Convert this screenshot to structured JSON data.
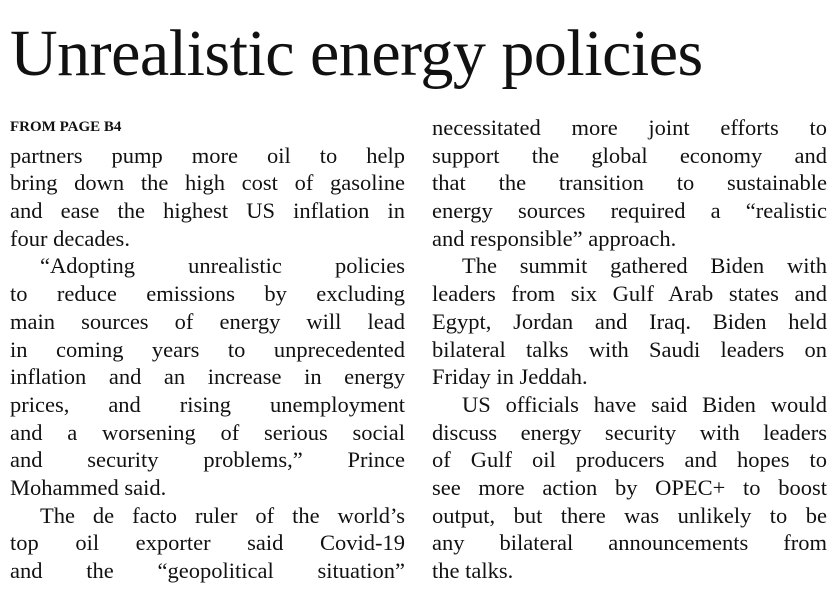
{
  "headline": "Unrealistic energy policies",
  "kicker": "FROM PAGE B4",
  "columns": [
    {
      "paragraphs": [
        {
          "lines": [
            "partners pump more oil to help",
            "bring down the high cost of gasoline",
            "and ease the highest US inflation in",
            "four decades."
          ]
        },
        {
          "lines": [
            "“Adopting unrealistic policies",
            "to reduce emissions by excluding",
            "main sources of energy will lead",
            "in coming years to unprecedented",
            "inflation and an increase in energy",
            "prices, and rising unemployment",
            "and a worsening of serious social",
            "and security problems,” Prince",
            "Mohammed said."
          ]
        },
        {
          "lines": [
            "The de facto ruler of the world’s",
            "top oil exporter said Covid-19",
            "and the “geopolitical situation”"
          ]
        }
      ]
    },
    {
      "paragraphs": [
        {
          "lines": [
            "necessitated more joint efforts to",
            "support the global economy and",
            "that the transition to sustainable",
            "energy sources required a “realistic",
            "and responsible” approach."
          ]
        },
        {
          "lines": [
            "The summit gathered Biden with",
            "leaders from six Gulf Arab states and",
            "Egypt, Jordan and Iraq. Biden held",
            "bilateral talks with Saudi leaders on",
            "Friday in Jeddah."
          ]
        },
        {
          "lines": [
            "US officials have said Biden would",
            "discuss energy security with leaders",
            "of Gulf oil producers and hopes to",
            "see more action by OPEC+ to boost",
            "output, but there was unlikely to be",
            "any bilateral announcements from",
            "the talks."
          ]
        }
      ]
    }
  ]
}
